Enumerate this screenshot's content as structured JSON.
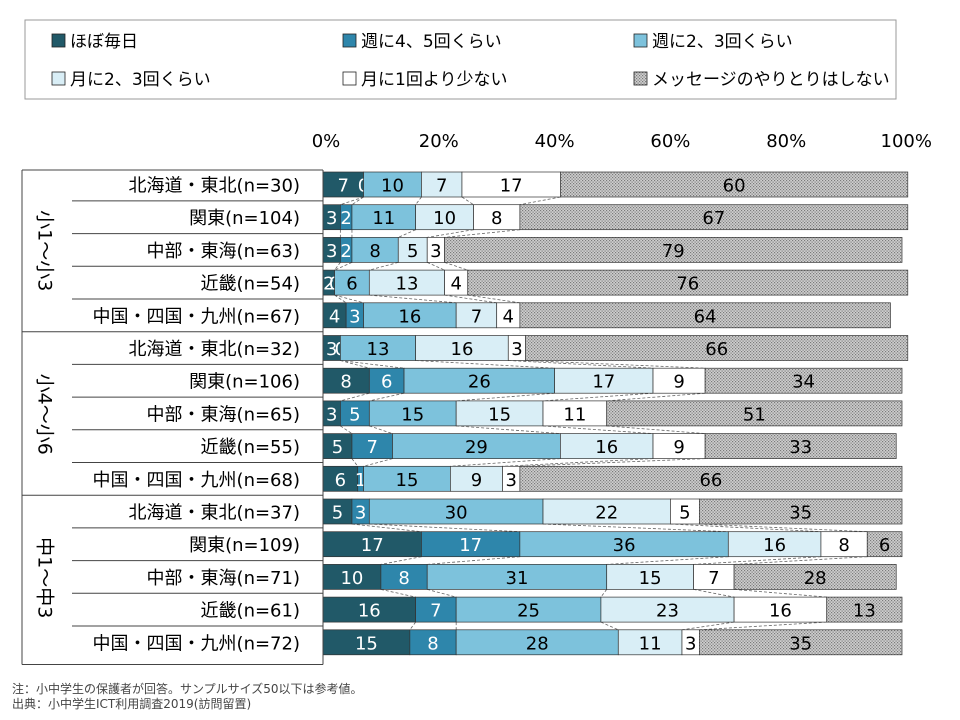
{
  "chart_data": {
    "type": "bar",
    "stacked": true,
    "orientation": "horizontal",
    "percent_axis": true,
    "xlim": [
      0,
      100
    ],
    "xticks": [
      "0%",
      "20%",
      "40%",
      "60%",
      "80%",
      "100%"
    ],
    "legend_position": "top",
    "series": [
      {
        "name": "ほぼ毎日",
        "color": "#215968"
      },
      {
        "name": "週に4、5回くらい",
        "color": "#2e86ab"
      },
      {
        "name": "週に2、3回くらい",
        "color": "#7dc2dc"
      },
      {
        "name": "月に2、3回くらい",
        "color": "#d9eef6"
      },
      {
        "name": "月に1回より少ない",
        "color": "#ffffff"
      },
      {
        "name": "メッセージのやりとりはしない",
        "color": "#b5b5b5",
        "pattern": "dotted"
      }
    ],
    "groups": [
      {
        "label": "小1～小3",
        "rows": [
          {
            "label": "北海道・東北(n=30)",
            "values": [
              7,
              0,
              10,
              7,
              17,
              60
            ]
          },
          {
            "label": "関東(n=104)",
            "values": [
              3,
              2,
              11,
              10,
              8,
              67
            ]
          },
          {
            "label": "中部・東海(n=63)",
            "values": [
              3,
              2,
              8,
              5,
              3,
              79
            ]
          },
          {
            "label": "近畿(n=54)",
            "values": [
              2,
              0,
              6,
              13,
              4,
              76
            ]
          },
          {
            "label": "中国・四国・九州(n=67)",
            "values": [
              4,
              3,
              16,
              7,
              4,
              64
            ]
          }
        ]
      },
      {
        "label": "小4～小6",
        "rows": [
          {
            "label": "北海道・東北(n=32)",
            "values": [
              3,
              0,
              13,
              16,
              3,
              66
            ]
          },
          {
            "label": "関東(n=106)",
            "values": [
              8,
              6,
              26,
              17,
              9,
              34
            ]
          },
          {
            "label": "中部・東海(n=65)",
            "values": [
              3,
              5,
              15,
              15,
              11,
              51
            ]
          },
          {
            "label": "近畿(n=55)",
            "values": [
              5,
              7,
              29,
              16,
              9,
              33
            ]
          },
          {
            "label": "中国・四国・九州(n=68)",
            "values": [
              6,
              1,
              15,
              9,
              3,
              66
            ]
          }
        ]
      },
      {
        "label": "中1～中3",
        "rows": [
          {
            "label": "北海道・東北(n=37)",
            "values": [
              5,
              3,
              30,
              22,
              5,
              35
            ]
          },
          {
            "label": "関東(n=109)",
            "values": [
              17,
              17,
              36,
              16,
              8,
              6
            ]
          },
          {
            "label": "中部・東海(n=71)",
            "values": [
              10,
              8,
              31,
              15,
              7,
              28
            ]
          },
          {
            "label": "近畿(n=61)",
            "values": [
              16,
              7,
              25,
              23,
              16,
              13
            ]
          },
          {
            "label": "中国・四国・九州(n=72)",
            "values": [
              15,
              8,
              28,
              11,
              3,
              35
            ]
          }
        ]
      }
    ],
    "notes": [
      "注：小中学生の保護者が回答。サンプルサイズ50以下は参考値。",
      "出典：小中学生ICT利用調査2019(訪問留置)"
    ]
  }
}
